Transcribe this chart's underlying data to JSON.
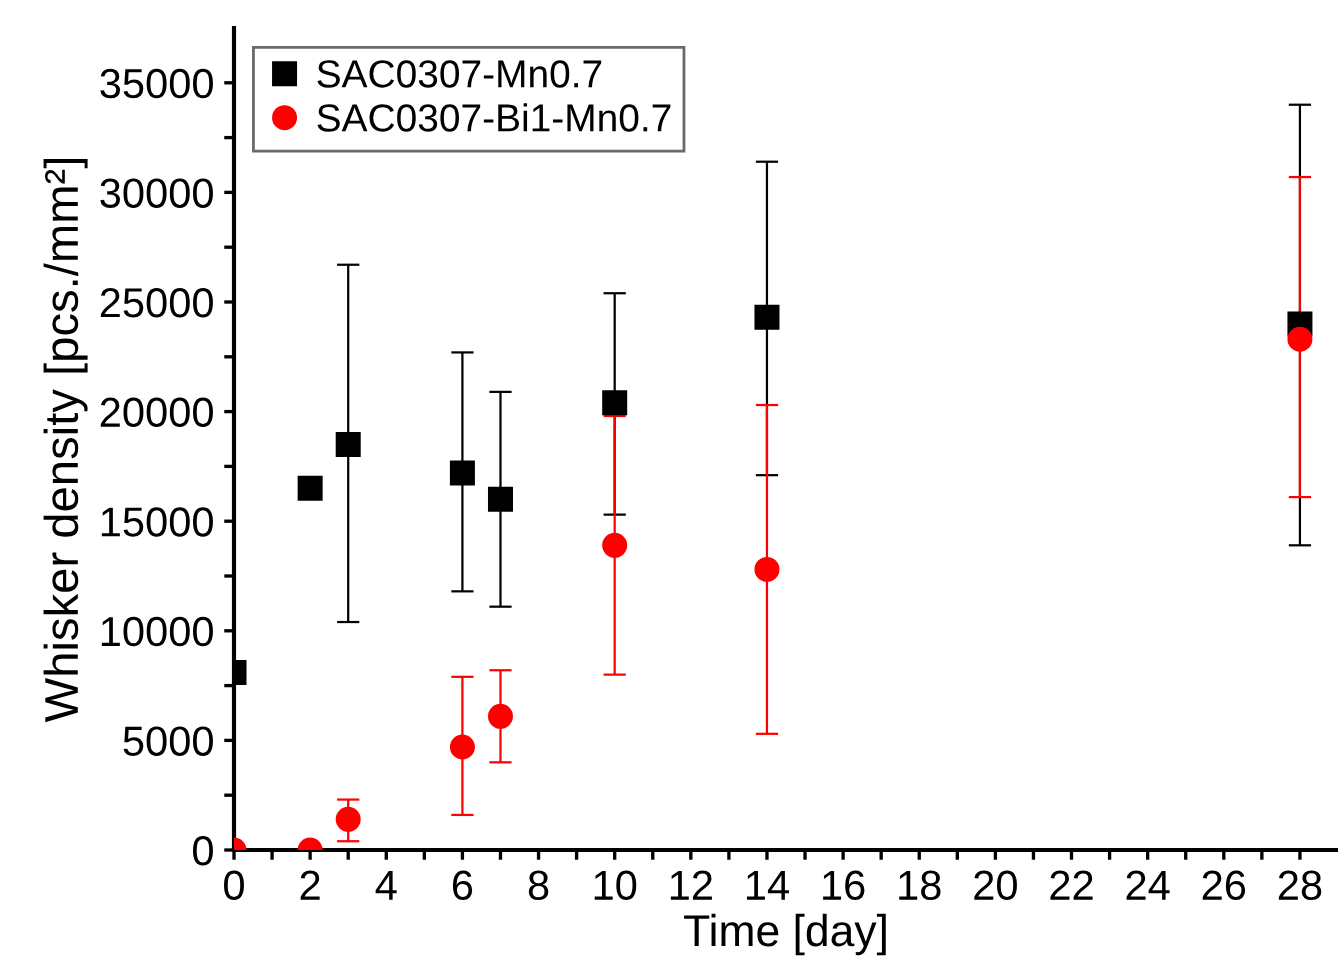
{
  "chart_data": {
    "type": "scatter",
    "xlabel": "Time [day]",
    "ylabel": "Whisker density [pcs./mm²]",
    "xlim": [
      0,
      29
    ],
    "ylim": [
      0,
      37500
    ],
    "xticks": [
      0,
      {
        "value": 1,
        "label": null
      },
      2,
      {
        "value": 3,
        "label": null
      },
      4,
      {
        "value": 5,
        "label": null
      },
      6,
      {
        "value": 7,
        "label": null
      },
      8,
      {
        "value": 9,
        "label": null
      },
      10,
      {
        "value": 11,
        "label": null
      },
      12,
      {
        "value": 13,
        "label": null
      },
      14,
      {
        "value": 15,
        "label": null
      },
      16,
      {
        "value": 17,
        "label": null
      },
      18,
      {
        "value": 19,
        "label": null
      },
      20,
      {
        "value": 21,
        "label": null
      },
      22,
      {
        "value": 23,
        "label": null
      },
      24,
      {
        "value": 25,
        "label": null
      },
      26,
      {
        "value": 27,
        "label": null
      },
      28
    ],
    "yticks": [
      0,
      {
        "value": 2500,
        "label": null
      },
      5000,
      {
        "value": 7500,
        "label": null
      },
      10000,
      {
        "value": 12500,
        "label": null
      },
      15000,
      {
        "value": 17500,
        "label": null
      },
      20000,
      {
        "value": 22500,
        "label": null
      },
      25000,
      {
        "value": 27500,
        "label": null
      },
      30000,
      {
        "value": 32500,
        "label": null
      },
      35000
    ],
    "grid": false,
    "legend": "top left",
    "x": [
      0,
      2,
      3,
      6,
      7,
      10,
      14,
      28
    ],
    "series": [
      {
        "name": "SAC0307-Mn0.7",
        "color": "#000000",
        "marker": "square",
        "values": [
          8100,
          16500,
          18500,
          17200,
          16000,
          20400,
          24300,
          24000
        ],
        "errors": [
          null,
          null,
          [
            10400,
            26700
          ],
          [
            11800,
            22700
          ],
          [
            11100,
            20900
          ],
          [
            15300,
            25400
          ],
          [
            17100,
            31400
          ],
          [
            13900,
            34000
          ]
        ]
      },
      {
        "name": "SAC0307-Bi1-Mn0.7",
        "color": "#ff0000",
        "marker": "circle",
        "values": [
          0,
          0,
          1400,
          4700,
          6100,
          13900,
          12800,
          23300
        ],
        "errors": [
          null,
          null,
          [
            400,
            2300
          ],
          [
            1600,
            7900
          ],
          [
            4000,
            8200
          ],
          [
            8000,
            19800
          ],
          [
            5300,
            20300
          ],
          [
            16100,
            30700
          ]
        ]
      }
    ]
  }
}
